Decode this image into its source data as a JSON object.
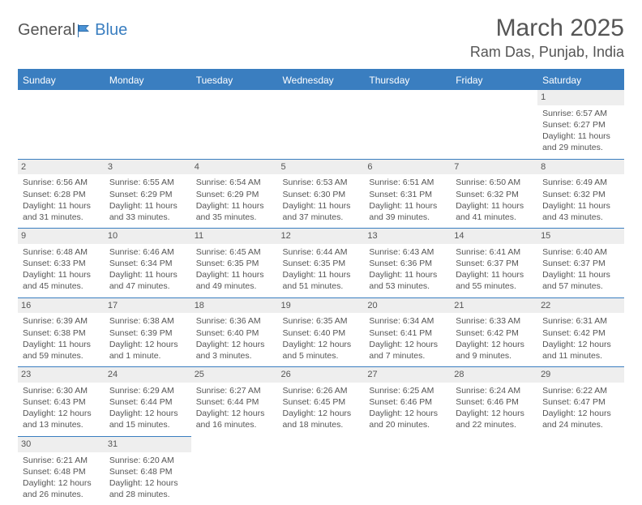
{
  "logo": {
    "text1": "General",
    "text2": "Blue"
  },
  "title": "March 2025",
  "location": "Ram Das, Punjab, India",
  "colors": {
    "header_bg": "#3a7ec0",
    "header_text": "#ffffff",
    "border": "#3a7ec0",
    "daynum_bg": "#eeeeee",
    "text": "#555555",
    "background": "#ffffff"
  },
  "weekdays": [
    "Sunday",
    "Monday",
    "Tuesday",
    "Wednesday",
    "Thursday",
    "Friday",
    "Saturday"
  ],
  "weeks": [
    [
      null,
      null,
      null,
      null,
      null,
      null,
      {
        "n": "1",
        "sr": "Sunrise: 6:57 AM",
        "ss": "Sunset: 6:27 PM",
        "d1": "Daylight: 11 hours",
        "d2": "and 29 minutes."
      }
    ],
    [
      {
        "n": "2",
        "sr": "Sunrise: 6:56 AM",
        "ss": "Sunset: 6:28 PM",
        "d1": "Daylight: 11 hours",
        "d2": "and 31 minutes."
      },
      {
        "n": "3",
        "sr": "Sunrise: 6:55 AM",
        "ss": "Sunset: 6:29 PM",
        "d1": "Daylight: 11 hours",
        "d2": "and 33 minutes."
      },
      {
        "n": "4",
        "sr": "Sunrise: 6:54 AM",
        "ss": "Sunset: 6:29 PM",
        "d1": "Daylight: 11 hours",
        "d2": "and 35 minutes."
      },
      {
        "n": "5",
        "sr": "Sunrise: 6:53 AM",
        "ss": "Sunset: 6:30 PM",
        "d1": "Daylight: 11 hours",
        "d2": "and 37 minutes."
      },
      {
        "n": "6",
        "sr": "Sunrise: 6:51 AM",
        "ss": "Sunset: 6:31 PM",
        "d1": "Daylight: 11 hours",
        "d2": "and 39 minutes."
      },
      {
        "n": "7",
        "sr": "Sunrise: 6:50 AM",
        "ss": "Sunset: 6:32 PM",
        "d1": "Daylight: 11 hours",
        "d2": "and 41 minutes."
      },
      {
        "n": "8",
        "sr": "Sunrise: 6:49 AM",
        "ss": "Sunset: 6:32 PM",
        "d1": "Daylight: 11 hours",
        "d2": "and 43 minutes."
      }
    ],
    [
      {
        "n": "9",
        "sr": "Sunrise: 6:48 AM",
        "ss": "Sunset: 6:33 PM",
        "d1": "Daylight: 11 hours",
        "d2": "and 45 minutes."
      },
      {
        "n": "10",
        "sr": "Sunrise: 6:46 AM",
        "ss": "Sunset: 6:34 PM",
        "d1": "Daylight: 11 hours",
        "d2": "and 47 minutes."
      },
      {
        "n": "11",
        "sr": "Sunrise: 6:45 AM",
        "ss": "Sunset: 6:35 PM",
        "d1": "Daylight: 11 hours",
        "d2": "and 49 minutes."
      },
      {
        "n": "12",
        "sr": "Sunrise: 6:44 AM",
        "ss": "Sunset: 6:35 PM",
        "d1": "Daylight: 11 hours",
        "d2": "and 51 minutes."
      },
      {
        "n": "13",
        "sr": "Sunrise: 6:43 AM",
        "ss": "Sunset: 6:36 PM",
        "d1": "Daylight: 11 hours",
        "d2": "and 53 minutes."
      },
      {
        "n": "14",
        "sr": "Sunrise: 6:41 AM",
        "ss": "Sunset: 6:37 PM",
        "d1": "Daylight: 11 hours",
        "d2": "and 55 minutes."
      },
      {
        "n": "15",
        "sr": "Sunrise: 6:40 AM",
        "ss": "Sunset: 6:37 PM",
        "d1": "Daylight: 11 hours",
        "d2": "and 57 minutes."
      }
    ],
    [
      {
        "n": "16",
        "sr": "Sunrise: 6:39 AM",
        "ss": "Sunset: 6:38 PM",
        "d1": "Daylight: 11 hours",
        "d2": "and 59 minutes."
      },
      {
        "n": "17",
        "sr": "Sunrise: 6:38 AM",
        "ss": "Sunset: 6:39 PM",
        "d1": "Daylight: 12 hours",
        "d2": "and 1 minute."
      },
      {
        "n": "18",
        "sr": "Sunrise: 6:36 AM",
        "ss": "Sunset: 6:40 PM",
        "d1": "Daylight: 12 hours",
        "d2": "and 3 minutes."
      },
      {
        "n": "19",
        "sr": "Sunrise: 6:35 AM",
        "ss": "Sunset: 6:40 PM",
        "d1": "Daylight: 12 hours",
        "d2": "and 5 minutes."
      },
      {
        "n": "20",
        "sr": "Sunrise: 6:34 AM",
        "ss": "Sunset: 6:41 PM",
        "d1": "Daylight: 12 hours",
        "d2": "and 7 minutes."
      },
      {
        "n": "21",
        "sr": "Sunrise: 6:33 AM",
        "ss": "Sunset: 6:42 PM",
        "d1": "Daylight: 12 hours",
        "d2": "and 9 minutes."
      },
      {
        "n": "22",
        "sr": "Sunrise: 6:31 AM",
        "ss": "Sunset: 6:42 PM",
        "d1": "Daylight: 12 hours",
        "d2": "and 11 minutes."
      }
    ],
    [
      {
        "n": "23",
        "sr": "Sunrise: 6:30 AM",
        "ss": "Sunset: 6:43 PM",
        "d1": "Daylight: 12 hours",
        "d2": "and 13 minutes."
      },
      {
        "n": "24",
        "sr": "Sunrise: 6:29 AM",
        "ss": "Sunset: 6:44 PM",
        "d1": "Daylight: 12 hours",
        "d2": "and 15 minutes."
      },
      {
        "n": "25",
        "sr": "Sunrise: 6:27 AM",
        "ss": "Sunset: 6:44 PM",
        "d1": "Daylight: 12 hours",
        "d2": "and 16 minutes."
      },
      {
        "n": "26",
        "sr": "Sunrise: 6:26 AM",
        "ss": "Sunset: 6:45 PM",
        "d1": "Daylight: 12 hours",
        "d2": "and 18 minutes."
      },
      {
        "n": "27",
        "sr": "Sunrise: 6:25 AM",
        "ss": "Sunset: 6:46 PM",
        "d1": "Daylight: 12 hours",
        "d2": "and 20 minutes."
      },
      {
        "n": "28",
        "sr": "Sunrise: 6:24 AM",
        "ss": "Sunset: 6:46 PM",
        "d1": "Daylight: 12 hours",
        "d2": "and 22 minutes."
      },
      {
        "n": "29",
        "sr": "Sunrise: 6:22 AM",
        "ss": "Sunset: 6:47 PM",
        "d1": "Daylight: 12 hours",
        "d2": "and 24 minutes."
      }
    ],
    [
      {
        "n": "30",
        "sr": "Sunrise: 6:21 AM",
        "ss": "Sunset: 6:48 PM",
        "d1": "Daylight: 12 hours",
        "d2": "and 26 minutes."
      },
      {
        "n": "31",
        "sr": "Sunrise: 6:20 AM",
        "ss": "Sunset: 6:48 PM",
        "d1": "Daylight: 12 hours",
        "d2": "and 28 minutes."
      },
      null,
      null,
      null,
      null,
      null
    ]
  ]
}
